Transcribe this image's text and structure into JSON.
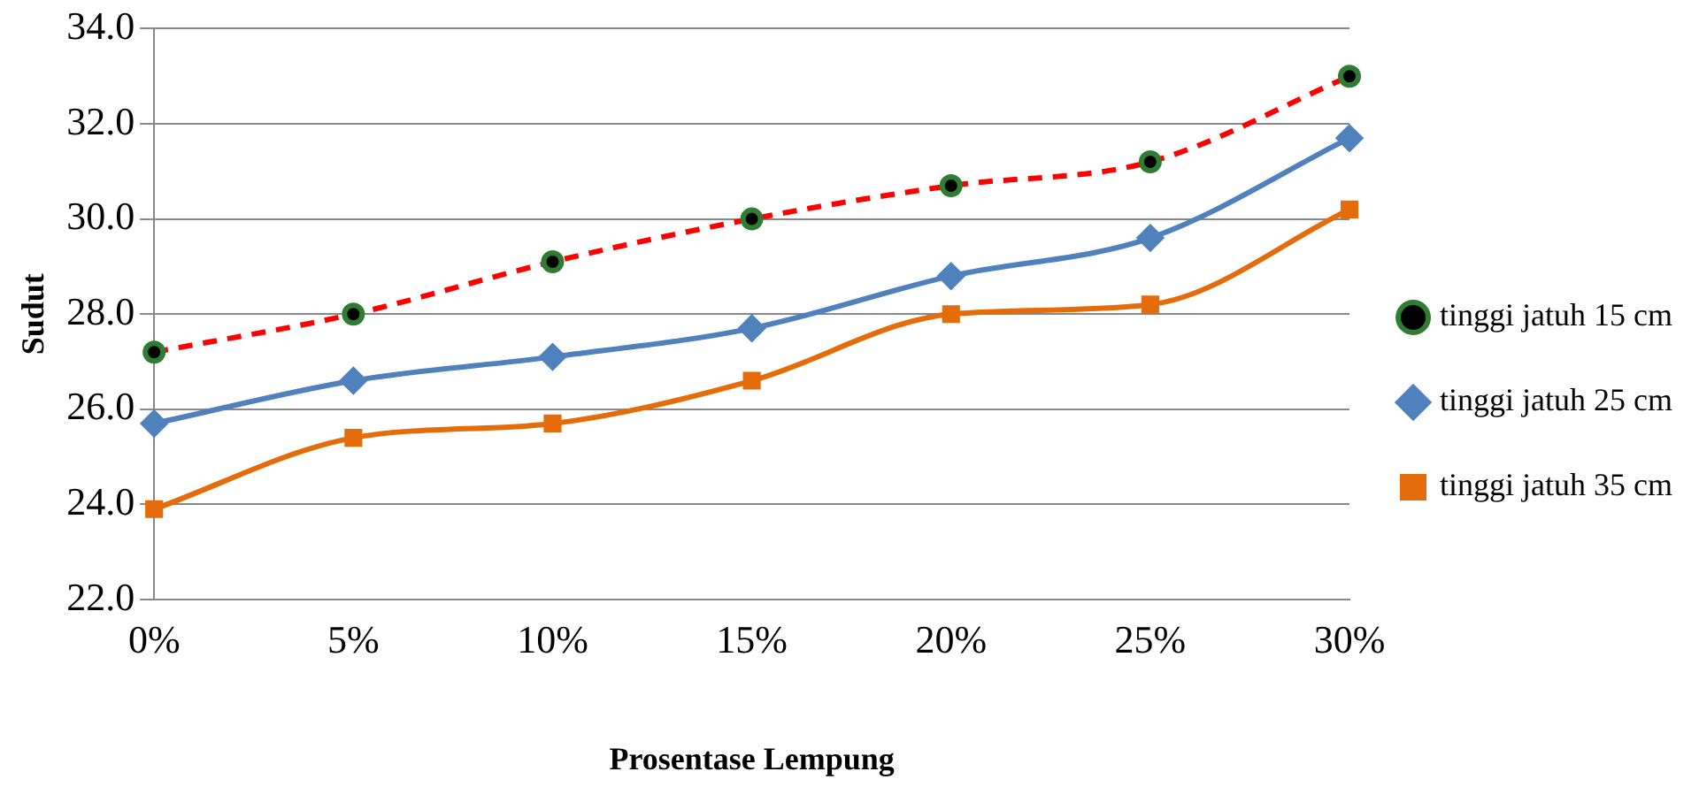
{
  "chart_data": {
    "type": "line",
    "xlabel": "Prosentase Lempung",
    "ylabel": "Sudut",
    "categories": [
      "0%",
      "5%",
      "10%",
      "15%",
      "20%",
      "25%",
      "30%"
    ],
    "series": [
      {
        "name": "tinggi jatuh 15 cm",
        "color": "#ff0000",
        "marker": "circle",
        "line_style": "dashed",
        "values": [
          27.2,
          28.0,
          29.1,
          30.0,
          30.7,
          31.2,
          33.0
        ]
      },
      {
        "name": "tinggi jatuh 25 cm",
        "color": "#4f81bd",
        "marker": "diamond",
        "line_style": "solid",
        "values": [
          25.7,
          26.6,
          27.1,
          27.7,
          28.8,
          29.6,
          31.7
        ]
      },
      {
        "name": "tinggi jatuh 35 cm",
        "color": "#e46c0a",
        "marker": "square",
        "line_style": "solid",
        "values": [
          23.9,
          25.4,
          25.7,
          26.6,
          28.0,
          28.2,
          30.2
        ]
      }
    ],
    "ylim": [
      22,
      34
    ],
    "yticks": [
      {
        "value": 22,
        "label": "22.0"
      },
      {
        "value": 24,
        "label": "24.0"
      },
      {
        "value": 26,
        "label": "26.0"
      },
      {
        "value": 28,
        "label": "28.0"
      },
      {
        "value": 30,
        "label": "30.0"
      },
      {
        "value": 32,
        "label": "32.0"
      },
      {
        "value": 34,
        "label": "34.0"
      }
    ],
    "grid": "y",
    "legend": "right"
  }
}
